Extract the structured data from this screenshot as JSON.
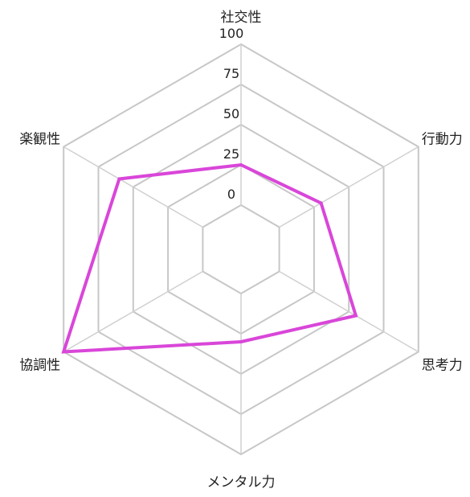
{
  "chart_data": {
    "type": "radar",
    "axes": [
      "社交性",
      "行動力",
      "思考力",
      "メンタル力",
      "協調性",
      "楽観性"
    ],
    "ticks": [
      0,
      25,
      50,
      75,
      100
    ],
    "range": [
      0,
      100
    ],
    "grid": true,
    "legend": "none",
    "series": [
      {
        "values": [
          25,
          30,
          55,
          30,
          100,
          60
        ],
        "color": "#d946d9"
      }
    ]
  }
}
